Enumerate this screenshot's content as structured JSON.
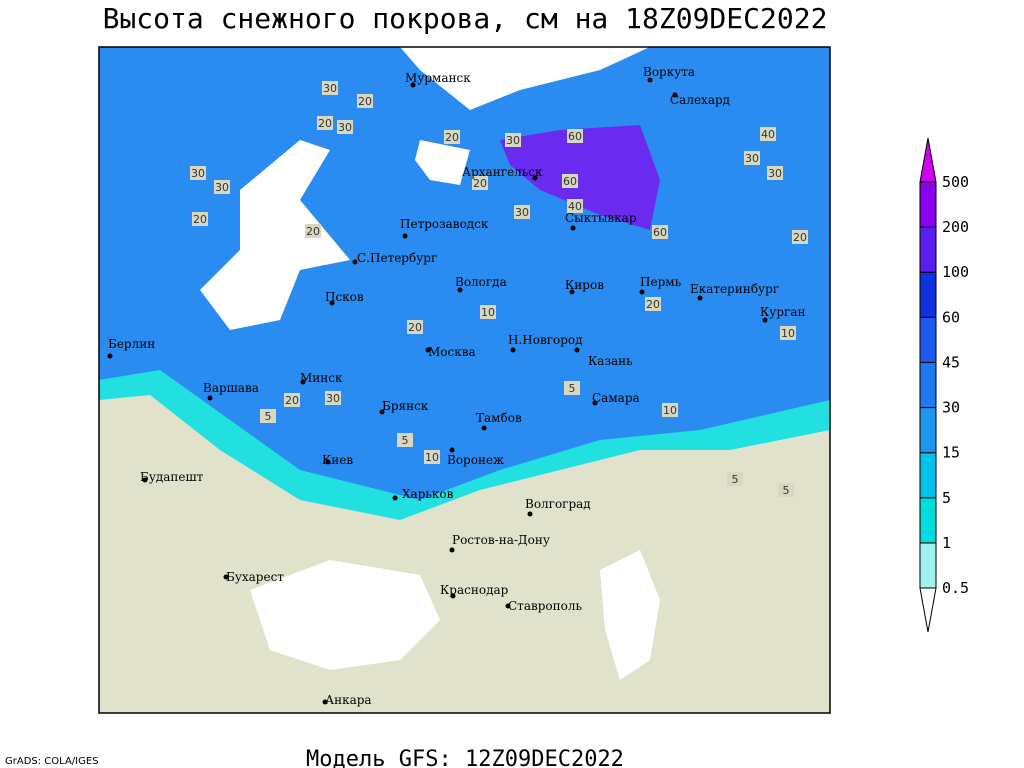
{
  "map": {
    "title": "Высота снежного покрова, см на 18Z09DEC2022",
    "footer": "Модель GFS: 12Z09DEC2022",
    "credit": "GrADS: COLA/IGES",
    "cities": [
      "Мурманск",
      "Воркута",
      "Салехард",
      "Архангельск",
      "Сыктывкар",
      "Петрозаводск",
      "С.Петербург",
      "Вологда",
      "Киров",
      "Пермь",
      "Екатеринбург",
      "Курган",
      "Псков",
      "Н.Новгород",
      "Казань",
      "Москва",
      "Берлин",
      "Минск",
      "Варшава",
      "Самара",
      "Брянск",
      "Тамбов",
      "Киев",
      "Воронеж",
      "Будапешт",
      "Харьков",
      "Волгоград",
      "Ростов-на-Дону",
      "Бухарест",
      "Краснодар",
      "Ставрополь",
      "Анкара"
    ],
    "contour_labels": [
      "30",
      "20",
      "20",
      "30",
      "20",
      "30",
      "60",
      "60",
      "20",
      "30",
      "40",
      "60",
      "40",
      "30",
      "30",
      "20",
      "20",
      "20",
      "30",
      "30",
      "10",
      "20",
      "20",
      "10",
      "20",
      "30",
      "5",
      "5",
      "10",
      "5",
      "5",
      "10",
      "5"
    ],
    "legend": {
      "levels": [
        0.5,
        1,
        5,
        15,
        30,
        45,
        60,
        100,
        200,
        500
      ],
      "colors": [
        "#ffffff",
        "#a0f0f0",
        "#00dcdc",
        "#00c0f0",
        "#1e96f0",
        "#1e78f0",
        "#1e5af0",
        "#1030e0",
        "#5a1ef0",
        "#8c00f0",
        "#d200f0"
      ]
    }
  }
}
